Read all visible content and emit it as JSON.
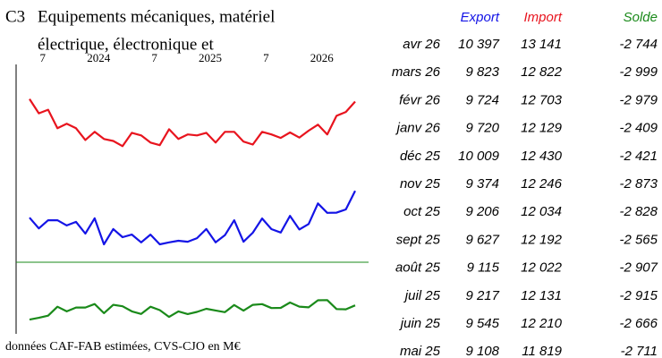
{
  "chart_data": {
    "type": "line",
    "code": "C3",
    "title_lines": [
      "Equipements mécaniques, matériel",
      "électrique, électronique et"
    ],
    "footnote": "données CAF-FAB estimées, CVS-CJO en M€",
    "categories": [
      null,
      null,
      "7",
      null,
      null,
      null,
      null,
      null,
      "2024",
      null,
      null,
      null,
      null,
      null,
      "7",
      null,
      null,
      null,
      null,
      null,
      "2025",
      null,
      null,
      null,
      null,
      null,
      "7",
      null,
      null,
      null,
      null,
      null,
      "2026",
      null,
      null,
      null
    ],
    "ylim": [
      8200,
      14200
    ],
    "y2lim": [
      -4500,
      0
    ],
    "series": [
      {
        "name": "Export",
        "color": "#1414e6",
        "values": [
          9570,
          9240,
          9490,
          9490,
          9330,
          9440,
          9080,
          9550,
          8750,
          9220,
          8970,
          9050,
          8810,
          9050,
          8750,
          8810,
          8860,
          8830,
          8940,
          9220,
          8810,
          9030,
          9490,
          8830,
          9108,
          9545,
          9217,
          9115,
          9627,
          9206,
          9374,
          10009,
          9720,
          9724,
          9823,
          10397
        ]
      },
      {
        "name": "Import",
        "color": "#e8141e",
        "values": [
          13220,
          12780,
          12890,
          12320,
          12460,
          12320,
          11960,
          12210,
          11990,
          11930,
          11770,
          12180,
          12100,
          11880,
          11800,
          12290,
          11990,
          12130,
          12100,
          12180,
          11880,
          12210,
          12210,
          11910,
          11819,
          12210,
          12131,
          12022,
          12192,
          12034,
          12246,
          12430,
          12129,
          12703,
          12822,
          13141
        ]
      },
      {
        "name": "Solde",
        "color": "#1a8a1a",
        "axis": "y2",
        "values": [
          -3650,
          -3540,
          -3400,
          -2830,
          -3130,
          -2880,
          -2880,
          -2660,
          -3240,
          -2710,
          -2800,
          -3130,
          -3290,
          -2830,
          -3050,
          -3480,
          -3130,
          -3300,
          -3160,
          -2960,
          -3070,
          -3180,
          -2720,
          -3080,
          -2711,
          -2666,
          -2915,
          -2907,
          -2565,
          -2828,
          -2873,
          -2421,
          -2409,
          -2979,
          -2999,
          -2744
        ]
      }
    ]
  },
  "table": {
    "rows": [
      [
        "avr 26",
        "10 397",
        "13 141",
        "-2 744"
      ],
      [
        "mars 26",
        "9 823",
        "12 822",
        "-2 999"
      ],
      [
        "févr 26",
        "9 724",
        "12 703",
        "-2 979"
      ],
      [
        "janv 26",
        "9 720",
        "12 129",
        "-2 409"
      ],
      [
        "déc 25",
        "10 009",
        "12 430",
        "-2 421"
      ],
      [
        "nov 25",
        "9 374",
        "12 246",
        "-2 873"
      ],
      [
        "oct 25",
        "9 206",
        "12 034",
        "-2 828"
      ],
      [
        "sept 25",
        "9 627",
        "12 192",
        "-2 565"
      ],
      [
        "août 25",
        "9 115",
        "12 022",
        "-2 907"
      ],
      [
        "juil 25",
        "9 217",
        "12 131",
        "-2 915"
      ],
      [
        "juin 25",
        "9 545",
        "12 210",
        "-2 666"
      ],
      [
        "mai 25",
        "9 108",
        "11 819",
        "-2 711"
      ]
    ]
  }
}
